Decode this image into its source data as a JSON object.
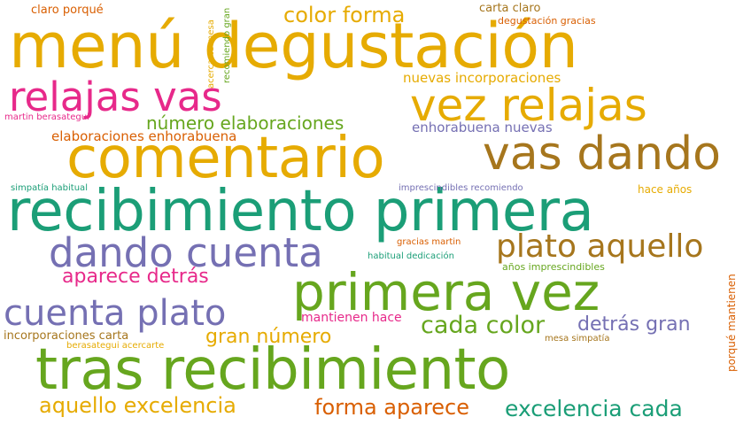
{
  "palette": {
    "gold": "#e6ab02",
    "teal": "#1b9e77",
    "magenta": "#e7298a",
    "green": "#66a61e",
    "violet": "#7570b3",
    "brown": "#a6761d",
    "orange": "#d95f02"
  },
  "words": [
    {
      "text": "menú degustación",
      "color": "gold"
    },
    {
      "text": "recibimiento primera",
      "color": "teal"
    },
    {
      "text": "tras recibimiento",
      "color": "green"
    },
    {
      "text": "comentario",
      "color": "gold"
    },
    {
      "text": "primera vez",
      "color": "green"
    },
    {
      "text": "relajas vas",
      "color": "magenta"
    },
    {
      "text": "vez relajas",
      "color": "gold"
    },
    {
      "text": "vas dando",
      "color": "brown"
    },
    {
      "text": "dando cuenta",
      "color": "violet"
    },
    {
      "text": "cuenta plato",
      "color": "violet"
    },
    {
      "text": "plato aquello",
      "color": "brown"
    },
    {
      "text": "cada color",
      "color": "green"
    },
    {
      "text": "excelencia cada",
      "color": "teal"
    },
    {
      "text": "aquello excelencia",
      "color": "gold"
    },
    {
      "text": "forma aparece",
      "color": "orange"
    },
    {
      "text": "color forma",
      "color": "gold"
    },
    {
      "text": "gran número",
      "color": "gold"
    },
    {
      "text": "detrás gran",
      "color": "violet"
    },
    {
      "text": "aparece detrás",
      "color": "magenta"
    },
    {
      "text": "número elaboraciones",
      "color": "green"
    },
    {
      "text": "elaboraciones enhorabuena",
      "color": "orange"
    },
    {
      "text": "nuevas incorporaciones",
      "color": "gold"
    },
    {
      "text": "enhorabuena nuevas",
      "color": "violet"
    },
    {
      "text": "mantienen hace",
      "color": "magenta"
    },
    {
      "text": "incorporaciones carta",
      "color": "brown"
    },
    {
      "text": "claro porqué",
      "color": "orange"
    },
    {
      "text": "carta claro",
      "color": "brown"
    },
    {
      "text": "degustación gracias",
      "color": "orange"
    },
    {
      "text": "martin berasategui",
      "color": "magenta"
    },
    {
      "text": "simpatía habitual",
      "color": "teal"
    },
    {
      "text": "imprescindibles recomiendo",
      "color": "violet"
    },
    {
      "text": "hace años",
      "color": "gold"
    },
    {
      "text": "gracias martin",
      "color": "orange"
    },
    {
      "text": "habitual dedicación",
      "color": "teal"
    },
    {
      "text": "años imprescindibles",
      "color": "green"
    },
    {
      "text": "berasategui acercarte",
      "color": "gold"
    },
    {
      "text": "mesa simpatía",
      "color": "brown"
    },
    {
      "text": "acercarte mesa",
      "color": "gold"
    },
    {
      "text": "recomiendo gran",
      "color": "green"
    },
    {
      "text": "porqué mantienen",
      "color": "orange"
    }
  ]
}
